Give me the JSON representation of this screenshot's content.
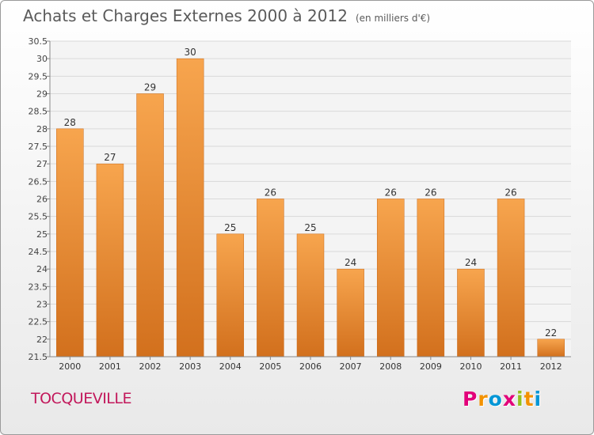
{
  "header": {
    "title": "Achats et Charges Externes 2000 à 2012",
    "unit": "(en milliers d'€)"
  },
  "footer": {
    "commune": "TOCQUEVILLE",
    "logo_text": "Proxiti",
    "logo_colors": [
      "#e2007a",
      "#f39200",
      "#0096d6",
      "#e2007a",
      "#95c11f",
      "#f39200",
      "#0096d6"
    ]
  },
  "chart_data": {
    "type": "bar",
    "categories": [
      "2000",
      "2001",
      "2002",
      "2003",
      "2004",
      "2005",
      "2006",
      "2007",
      "2008",
      "2009",
      "2010",
      "2011",
      "2012"
    ],
    "values": [
      28,
      27,
      29,
      30,
      25,
      26,
      25,
      24,
      26,
      26,
      24,
      26,
      22
    ],
    "data_labels": [
      "28",
      "27",
      "29",
      "30",
      "25",
      "26",
      "25",
      "24",
      "26",
      "26",
      "24",
      "26",
      "22"
    ],
    "ylim": [
      21.5,
      30.5
    ],
    "yticks": [
      "21.5",
      "22",
      "22.5",
      "23",
      "23.5",
      "24",
      "24.5",
      "25",
      "25.5",
      "26",
      "26.5",
      "27",
      "27.5",
      "28",
      "28.5",
      "29",
      "29.5",
      "30",
      "30.5"
    ],
    "grid": true,
    "bar_color_top": "#f7a54e",
    "bar_color_bottom": "#d2701d"
  }
}
